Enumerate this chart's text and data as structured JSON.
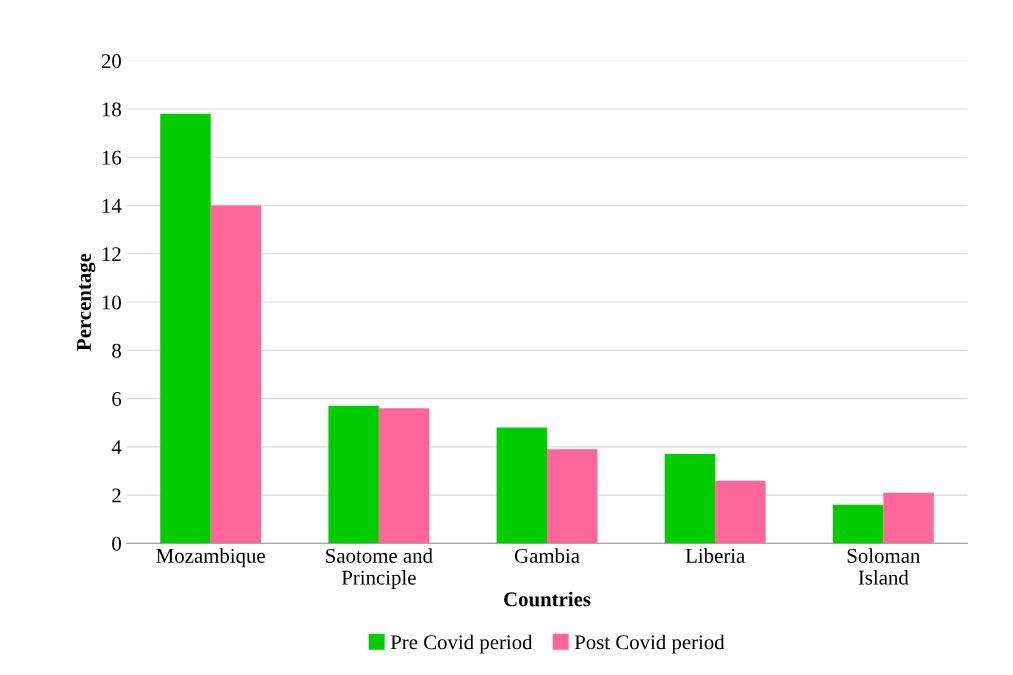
{
  "chart_data": {
    "type": "bar",
    "xlabel": "Countries",
    "ylabel": "Percentage",
    "categories": [
      "Mozambique",
      "Saotome and\nPrinciple",
      "Gambia",
      "Liberia",
      "Soloman\nIsland"
    ],
    "series": [
      {
        "name": "Pre Covid period",
        "color": "#00cc00",
        "values": [
          17.8,
          5.7,
          4.8,
          3.7,
          1.6
        ]
      },
      {
        "name": "Post Covid period",
        "color": "#ff6699",
        "values": [
          14.0,
          5.6,
          3.9,
          2.6,
          2.1
        ]
      }
    ],
    "ylim": [
      0,
      20
    ],
    "yticks": [
      0,
      2,
      4,
      6,
      8,
      10,
      12,
      14,
      16,
      18,
      20
    ],
    "grid": "y",
    "legend": "bottom"
  }
}
